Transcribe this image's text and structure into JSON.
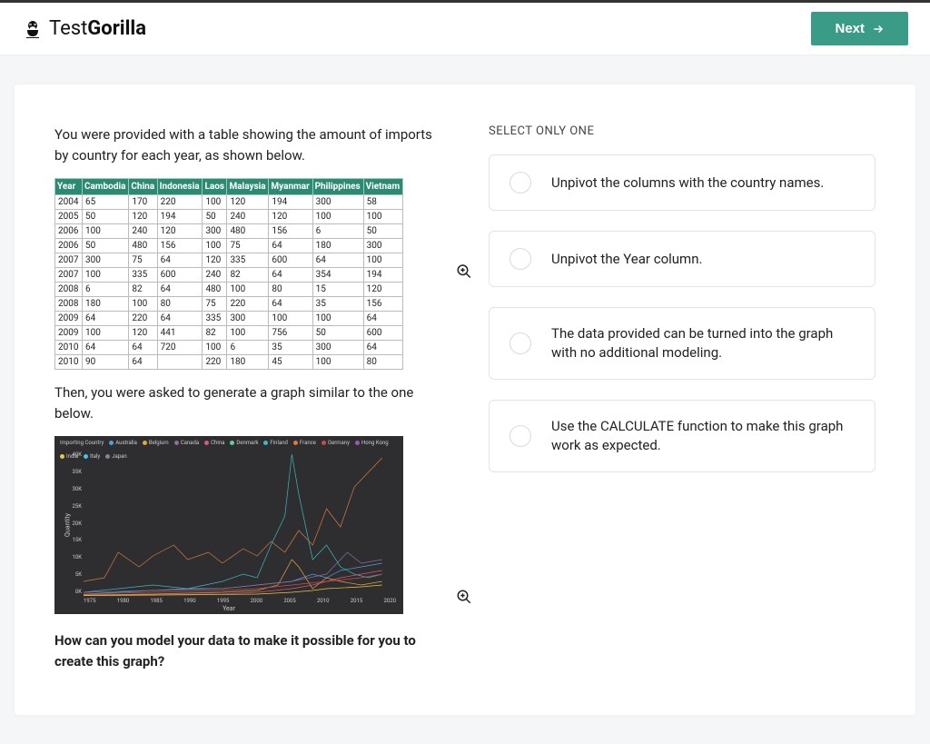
{
  "header": {
    "brand_first": "Test",
    "brand_second": "Gorilla",
    "next_label": "Next"
  },
  "question": {
    "intro": "You were provided with a table showing the amount of imports by country for each year, as shown below.",
    "then_text": "Then, you were asked to generate a graph similar to the one below.",
    "prompt": "How can you model your data to make it possible for you to create this graph?"
  },
  "data_table": {
    "columns": [
      "Year",
      "Cambodia",
      "China",
      "Indonesia",
      "Laos",
      "Malaysia",
      "Myanmar",
      "Philippines",
      "Vietnam"
    ],
    "rows": [
      [
        "2004",
        "65",
        "170",
        "220",
        "100",
        "120",
        "194",
        "300",
        "58"
      ],
      [
        "2005",
        "50",
        "120",
        "194",
        "50",
        "240",
        "120",
        "100",
        "100"
      ],
      [
        "2006",
        "100",
        "240",
        "120",
        "300",
        "480",
        "156",
        "6",
        "50"
      ],
      [
        "2006",
        "50",
        "480",
        "156",
        "100",
        "75",
        "64",
        "180",
        "300"
      ],
      [
        "2007",
        "300",
        "75",
        "64",
        "120",
        "335",
        "600",
        "64",
        "100"
      ],
      [
        "2007",
        "100",
        "335",
        "600",
        "240",
        "82",
        "64",
        "354",
        "194"
      ],
      [
        "2008",
        "6",
        "82",
        "64",
        "480",
        "100",
        "80",
        "15",
        "120"
      ],
      [
        "2008",
        "180",
        "100",
        "80",
        "75",
        "220",
        "64",
        "35",
        "156"
      ],
      [
        "2009",
        "64",
        "220",
        "64",
        "335",
        "300",
        "100",
        "100",
        "64"
      ],
      [
        "2009",
        "100",
        "120",
        "441",
        "82",
        "100",
        "756",
        "50",
        "600"
      ],
      [
        "2010",
        "64",
        "64",
        "720",
        "100",
        "6",
        "35",
        "300",
        "64"
      ],
      [
        "2010",
        "90",
        "64",
        "",
        "220",
        "180",
        "45",
        "100",
        "80"
      ]
    ],
    "header_bg": "#2d8a72",
    "header_fg": "#ffffff",
    "cell_border": "#bbbbbb"
  },
  "chart": {
    "type": "line",
    "background_color": "#2e2e30",
    "text_color": "#cccccc",
    "ylabel": "Quantity",
    "xlabel": "Year",
    "yticks": [
      "40K",
      "35K",
      "30K",
      "25K",
      "20K",
      "15K",
      "10K",
      "5K",
      "0K"
    ],
    "xticks": [
      "1975",
      "1980",
      "1985",
      "1990",
      "1995",
      "2000",
      "2005",
      "2010",
      "2015",
      "2020"
    ],
    "xlim": [
      1975,
      2020
    ],
    "ylim": [
      0,
      40
    ],
    "legend_label": "Importing Country",
    "legend": [
      {
        "label": "Australia",
        "color": "#4aa3df"
      },
      {
        "label": "Belgium",
        "color": "#e6a23c"
      },
      {
        "label": "Canada",
        "color": "#8e6e9b"
      },
      {
        "label": "China",
        "color": "#d15b7c"
      },
      {
        "label": "Denmark",
        "color": "#5fcf9e"
      },
      {
        "label": "Finland",
        "color": "#3fb7b7"
      },
      {
        "label": "France",
        "color": "#d97b3f"
      },
      {
        "label": "Germany",
        "color": "#c94c4c"
      },
      {
        "label": "Hong Kong",
        "color": "#9b59b6"
      },
      {
        "label": "India",
        "color": "#e6c84a"
      },
      {
        "label": "Italy",
        "color": "#4ac0e6"
      },
      {
        "label": "Japan",
        "color": "#7b8896"
      }
    ],
    "series": [
      {
        "name": "France",
        "color": "#d97b3f",
        "points": [
          [
            1975,
            4
          ],
          [
            1978,
            5
          ],
          [
            1980,
            12
          ],
          [
            1983,
            8
          ],
          [
            1985,
            11
          ],
          [
            1988,
            14
          ],
          [
            1990,
            10
          ],
          [
            1993,
            12
          ],
          [
            1995,
            9
          ],
          [
            1998,
            13
          ],
          [
            2000,
            11
          ],
          [
            2002,
            15
          ],
          [
            2004,
            12
          ],
          [
            2006,
            18
          ],
          [
            2008,
            14
          ],
          [
            2010,
            24
          ],
          [
            2012,
            19
          ],
          [
            2014,
            30
          ],
          [
            2016,
            34
          ],
          [
            2018,
            38
          ]
        ]
      },
      {
        "name": "Finland",
        "color": "#3fb7b7",
        "points": [
          [
            1975,
            1
          ],
          [
            1980,
            2
          ],
          [
            1985,
            3
          ],
          [
            1990,
            2
          ],
          [
            1995,
            4
          ],
          [
            1998,
            6
          ],
          [
            2000,
            5
          ],
          [
            2002,
            14
          ],
          [
            2004,
            22
          ],
          [
            2005,
            39
          ],
          [
            2006,
            28
          ],
          [
            2008,
            10
          ],
          [
            2010,
            14
          ],
          [
            2012,
            8
          ],
          [
            2014,
            6
          ],
          [
            2016,
            5
          ],
          [
            2018,
            6
          ]
        ]
      },
      {
        "name": "Australia",
        "color": "#4aa3df",
        "points": [
          [
            1975,
            0.5
          ],
          [
            1980,
            1
          ],
          [
            1985,
            1.5
          ],
          [
            1990,
            2
          ],
          [
            1995,
            2
          ],
          [
            2000,
            3
          ],
          [
            2005,
            4
          ],
          [
            2008,
            6
          ],
          [
            2010,
            5
          ],
          [
            2012,
            7
          ],
          [
            2015,
            8
          ],
          [
            2018,
            9
          ]
        ]
      },
      {
        "name": "Belgium",
        "color": "#e6a23c",
        "points": [
          [
            1975,
            0.3
          ],
          [
            1985,
            0.5
          ],
          [
            1995,
            1
          ],
          [
            2000,
            1.5
          ],
          [
            2003,
            3
          ],
          [
            2005,
            10
          ],
          [
            2006,
            8
          ],
          [
            2008,
            2
          ],
          [
            2010,
            5
          ],
          [
            2012,
            4
          ],
          [
            2015,
            3
          ],
          [
            2018,
            4
          ]
        ]
      },
      {
        "name": "China",
        "color": "#d15b7c",
        "points": [
          [
            1975,
            0.2
          ],
          [
            1985,
            0.3
          ],
          [
            1995,
            0.5
          ],
          [
            2000,
            1
          ],
          [
            2005,
            2
          ],
          [
            2008,
            3
          ],
          [
            2010,
            4
          ],
          [
            2012,
            5
          ],
          [
            2015,
            6
          ],
          [
            2018,
            7
          ]
        ]
      },
      {
        "name": "India",
        "color": "#e6c84a",
        "points": [
          [
            1975,
            0.1
          ],
          [
            1990,
            0.3
          ],
          [
            2000,
            0.5
          ],
          [
            2005,
            1
          ],
          [
            2008,
            1.5
          ],
          [
            2010,
            2
          ],
          [
            2015,
            2.5
          ],
          [
            2018,
            3
          ]
        ]
      },
      {
        "name": "Canada",
        "color": "#8e6e9b",
        "points": [
          [
            1975,
            1
          ],
          [
            1985,
            1.5
          ],
          [
            1995,
            2
          ],
          [
            2000,
            3
          ],
          [
            2005,
            4
          ],
          [
            2010,
            6
          ],
          [
            2013,
            12
          ],
          [
            2015,
            9
          ],
          [
            2018,
            10
          ]
        ]
      },
      {
        "name": "Germany",
        "color": "#c94c4c",
        "points": [
          [
            1975,
            0.5
          ],
          [
            1985,
            1
          ],
          [
            1995,
            1.5
          ],
          [
            2000,
            2
          ],
          [
            2005,
            3
          ],
          [
            2010,
            4
          ],
          [
            2015,
            5
          ],
          [
            2018,
            6
          ]
        ]
      }
    ]
  },
  "answers": {
    "label": "SELECT ONLY ONE",
    "options": [
      "Unpivot the columns with the country names.",
      "Unpivot the Year column.",
      "The data provided can be turned into the graph with no additional modeling.",
      "Use the CALCULATE function to make this graph work as expected."
    ]
  }
}
